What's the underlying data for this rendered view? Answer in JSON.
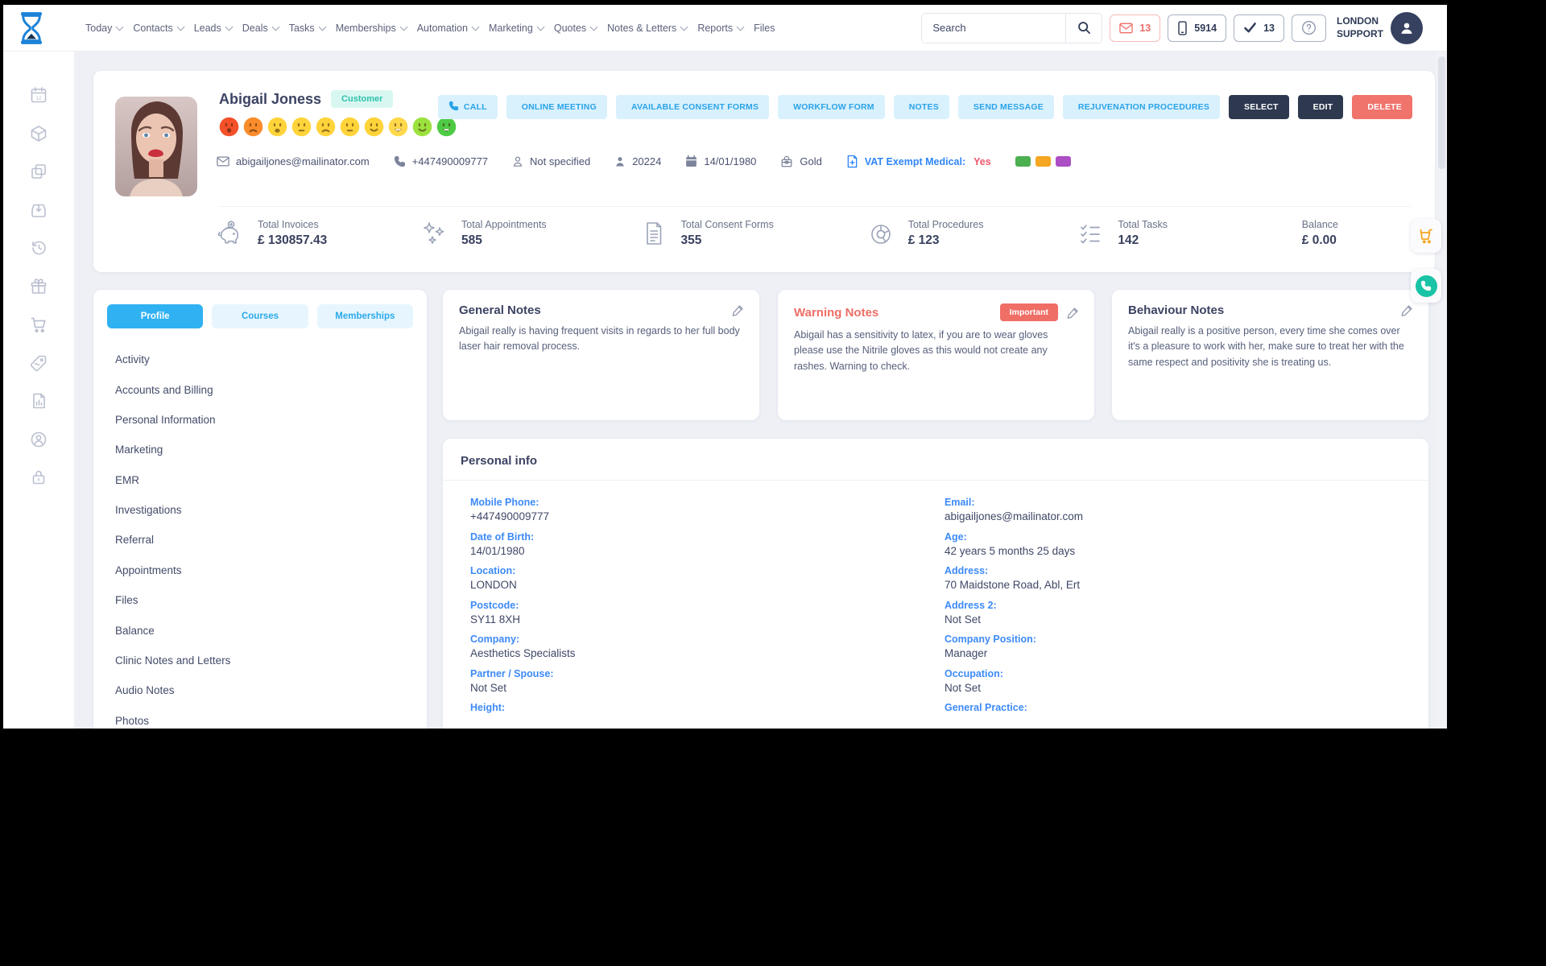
{
  "topbar": {
    "nav": [
      {
        "label": "Today",
        "chevron": true
      },
      {
        "label": "Contacts",
        "chevron": true
      },
      {
        "label": "Leads",
        "chevron": true
      },
      {
        "label": "Deals",
        "chevron": true
      },
      {
        "label": "Tasks",
        "chevron": true
      },
      {
        "label": "Memberships",
        "chevron": true
      },
      {
        "label": "Automation",
        "chevron": true
      },
      {
        "label": "Marketing",
        "chevron": true
      },
      {
        "label": "Quotes",
        "chevron": true
      },
      {
        "label": "Notes & Letters",
        "chevron": true
      },
      {
        "label": "Reports",
        "chevron": true
      },
      {
        "label": "Files",
        "chevron": false
      }
    ],
    "search_placeholder": "Search",
    "mail_count": "13",
    "phone_count": "5914",
    "task_count": "13",
    "user": "LONDON\nSUPPORT"
  },
  "profile": {
    "name": "Abigail Joness",
    "type_badge": "Customer",
    "mood_faces": [
      {
        "color": "#f4502a",
        "mouth": "sadopen"
      },
      {
        "color": "#fb8c2c",
        "mouth": "frown"
      },
      {
        "color": "#ffd43b",
        "mouth": "open"
      },
      {
        "color": "#ffd43b",
        "mouth": "flat"
      },
      {
        "color": "#ffd43b",
        "mouth": "frown"
      },
      {
        "color": "#ffd43b",
        "mouth": "flat"
      },
      {
        "color": "#ffd43b",
        "mouth": "smile"
      },
      {
        "color": "#ffd84b",
        "mouth": "grin"
      },
      {
        "color": "#9ce23f",
        "mouth": "smile"
      },
      {
        "color": "#4ecb44",
        "mouth": "grin"
      }
    ],
    "email": "abigailjones@mailinator.com",
    "phone": "+447490009777",
    "gender": "Not specified",
    "id": "20224",
    "dob": "14/01/1980",
    "tier": "Gold",
    "vat_label": "VAT Exempt Medical:",
    "vat_value": "Yes",
    "tags": [
      "#4caf50",
      "#f5a623",
      "#ad4fc4"
    ]
  },
  "actions": [
    {
      "label": "CALL",
      "style": "light",
      "icon": "call"
    },
    {
      "label": "ONLINE MEETING",
      "style": "light"
    },
    {
      "label": "AVAILABLE CONSENT FORMS",
      "style": "light"
    },
    {
      "label": "WORKFLOW FORM",
      "style": "light"
    },
    {
      "label": "NOTES",
      "style": "light"
    },
    {
      "label": "SEND MESSAGE",
      "style": "light"
    },
    {
      "label": "REJUVENATION PROCEDURES",
      "style": "light"
    },
    {
      "label": "SELECT",
      "style": "dark"
    },
    {
      "label": "EDIT",
      "style": "dark"
    },
    {
      "label": "DELETE",
      "style": "danger"
    }
  ],
  "stats": [
    {
      "icon": "piggy",
      "label": "Total Invoices",
      "value": "£ 130857.43"
    },
    {
      "icon": "sparkles",
      "label": "Total Appointments",
      "value": "585"
    },
    {
      "icon": "document",
      "label": "Total Consent Forms",
      "value": "355"
    },
    {
      "icon": "donut",
      "label": "Total Procedures",
      "value": "£ 123"
    },
    {
      "icon": "checklist",
      "label": "Total Tasks",
      "value": "142"
    },
    {
      "icon": "",
      "label": "Balance",
      "value": "£ 0.00"
    }
  ],
  "side_panel": {
    "tabs": [
      {
        "label": "Profile",
        "state": "active"
      },
      {
        "label": "Courses",
        "state": ""
      },
      {
        "label": "Memberships",
        "state": ""
      }
    ],
    "items": [
      "Activity",
      "Accounts and Billing",
      "Personal Information",
      "Marketing",
      "EMR",
      "Investigations",
      "Referral",
      "Appointments",
      "Files",
      "Balance",
      "Clinic Notes and Letters",
      "Audio Notes",
      "Photos"
    ]
  },
  "notes": [
    {
      "title": "General Notes",
      "variant": "",
      "badge": "",
      "text": "Abigail really is having frequent visits in regards to her full body laser hair removal process."
    },
    {
      "title": "Warning Notes",
      "variant": "warning",
      "badge": "Important",
      "text": "Abigail has a sensitivity to latex, if you are to wear gloves please use the Nitrile gloves as this would not create any rashes. Warning to check."
    },
    {
      "title": "Behaviour Notes",
      "variant": "",
      "badge": "",
      "text": "Abigail really is a positive person, every time she comes over it's a pleasure to work with her, make sure to treat her with the same respect and positivity she is treating us."
    }
  ],
  "personal_info": {
    "title": "Personal info",
    "left": [
      {
        "label": "Mobile Phone:",
        "value": "+447490009777"
      },
      {
        "label": "Date of Birth:",
        "value": "14/01/1980"
      },
      {
        "label": "Location:",
        "value": "LONDON"
      },
      {
        "label": "Postcode:",
        "value": "SY11 8XH"
      },
      {
        "label": "Company:",
        "value": "Aesthetics Specialists"
      },
      {
        "label": "Partner / Spouse:",
        "value": "Not Set"
      },
      {
        "label": "Height:",
        "value": ""
      }
    ],
    "right": [
      {
        "label": "Email:",
        "value": "abigailjones@mailinator.com"
      },
      {
        "label": "Age:",
        "value": "42 years 5 months 25 days"
      },
      {
        "label": "Address:",
        "value": "70 Maidstone Road, Abl, Ert"
      },
      {
        "label": "Address 2:",
        "value": "Not Set"
      },
      {
        "label": "Company Position:",
        "value": "Manager"
      },
      {
        "label": "Occupation:",
        "value": "Not Set"
      },
      {
        "label": "General Practice:",
        "value": ""
      }
    ]
  }
}
